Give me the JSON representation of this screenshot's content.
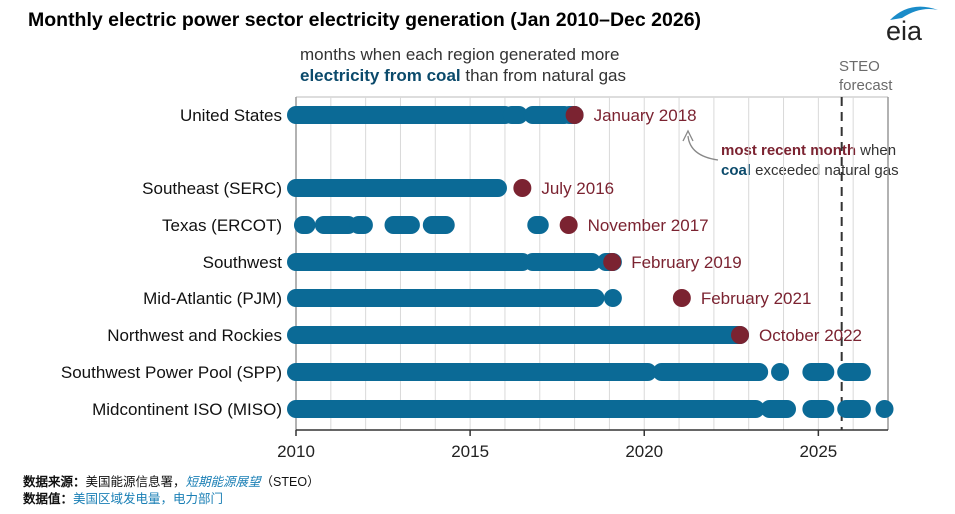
{
  "header": {
    "title": "Monthly electric power sector electricity generation (Jan 2010–Dec 2026)",
    "logo_text": "eia"
  },
  "colors": {
    "coal_dot": "#0b6a96",
    "recent_dot": "#7b2331",
    "label_recent": "#7b2331",
    "grid": "#d9d9d9",
    "axis": "#333333"
  },
  "chart_data": {
    "type": "scatter",
    "title": "Monthly electric power sector electricity generation (Jan 2010–Dec 2026)",
    "subtitle_line1": "months when each region generated more",
    "subtitle_line2_bold": "electricity from coal",
    "subtitle_line2_rest": " than from natural gas",
    "xlabel": "",
    "ylabel": "",
    "xlim": [
      2010,
      2027
    ],
    "x_ticks": [
      "2010",
      "2015",
      "2020",
      "2025"
    ],
    "x_tick_values": [
      2010,
      2015,
      2020,
      2025
    ],
    "grid": "vertical yearly lines",
    "forecast_start": 2025.67,
    "forecast_label": [
      "STEO",
      "forecast"
    ],
    "annotation": {
      "bold": "most recent month",
      "line1_rest": " when",
      "line2_bold": "coal",
      "line2_rest": " exceeded natural gas"
    },
    "series": [
      {
        "name": "United States",
        "segments": [
          [
            2010.0,
            2016.0
          ],
          [
            2016.2,
            2016.4
          ],
          [
            2016.8,
            2017.7
          ],
          [
            2017.85,
            2018.0
          ]
        ],
        "recent": 2018.0,
        "recent_label": "January 2018"
      },
      {
        "name": "Southeast (SERC)",
        "segments": [
          [
            2010.0,
            2015.8
          ]
        ],
        "recent": 2016.5,
        "recent_label": "July 2016"
      },
      {
        "name": "Texas (ERCOT)",
        "segments": [
          [
            2010.2,
            2010.3
          ],
          [
            2010.8,
            2011.5
          ],
          [
            2011.8,
            2011.95
          ],
          [
            2012.8,
            2013.3
          ],
          [
            2013.9,
            2014.3
          ],
          [
            2016.9,
            2017.0
          ]
        ],
        "recent": 2017.83,
        "recent_label": "November 2017"
      },
      {
        "name": "Southwest",
        "segments": [
          [
            2010.0,
            2016.5
          ],
          [
            2016.8,
            2018.5
          ],
          [
            2018.9,
            2019.1
          ]
        ],
        "recent": 2019.08,
        "recent_label": "February 2019"
      },
      {
        "name": "Mid-Atlantic (PJM)",
        "segments": [
          [
            2010.0,
            2018.6
          ],
          [
            2019.1,
            2019.1
          ]
        ],
        "recent": 2021.08,
        "recent_label": "February 2021"
      },
      {
        "name": "Northwest and Rockies",
        "segments": [
          [
            2010.0,
            2022.75
          ]
        ],
        "recent": 2022.75,
        "recent_label": "October 2022"
      },
      {
        "name": "Southwest Power Pool (SPP)",
        "segments": [
          [
            2010.0,
            2020.1
          ],
          [
            2020.5,
            2023.3
          ],
          [
            2023.9,
            2023.9
          ],
          [
            2024.8,
            2025.2
          ],
          [
            2025.8,
            2026.25
          ]
        ],
        "recent": null,
        "recent_label": ""
      },
      {
        "name": "Midcontinent ISO (MISO)",
        "segments": [
          [
            2010.0,
            2023.2
          ],
          [
            2023.6,
            2024.1
          ],
          [
            2024.8,
            2025.2
          ],
          [
            2025.8,
            2026.25
          ],
          [
            2026.9,
            2026.9
          ]
        ],
        "recent": null,
        "recent_label": ""
      }
    ]
  },
  "footer": {
    "source_label": "数据来源：",
    "source_text": "美国能源信息署，",
    "source_link": "短期能源展望",
    "source_suffix": "（STEO）",
    "value_label": "数据值：",
    "value_text": "美国区域发电量，电力部门"
  }
}
